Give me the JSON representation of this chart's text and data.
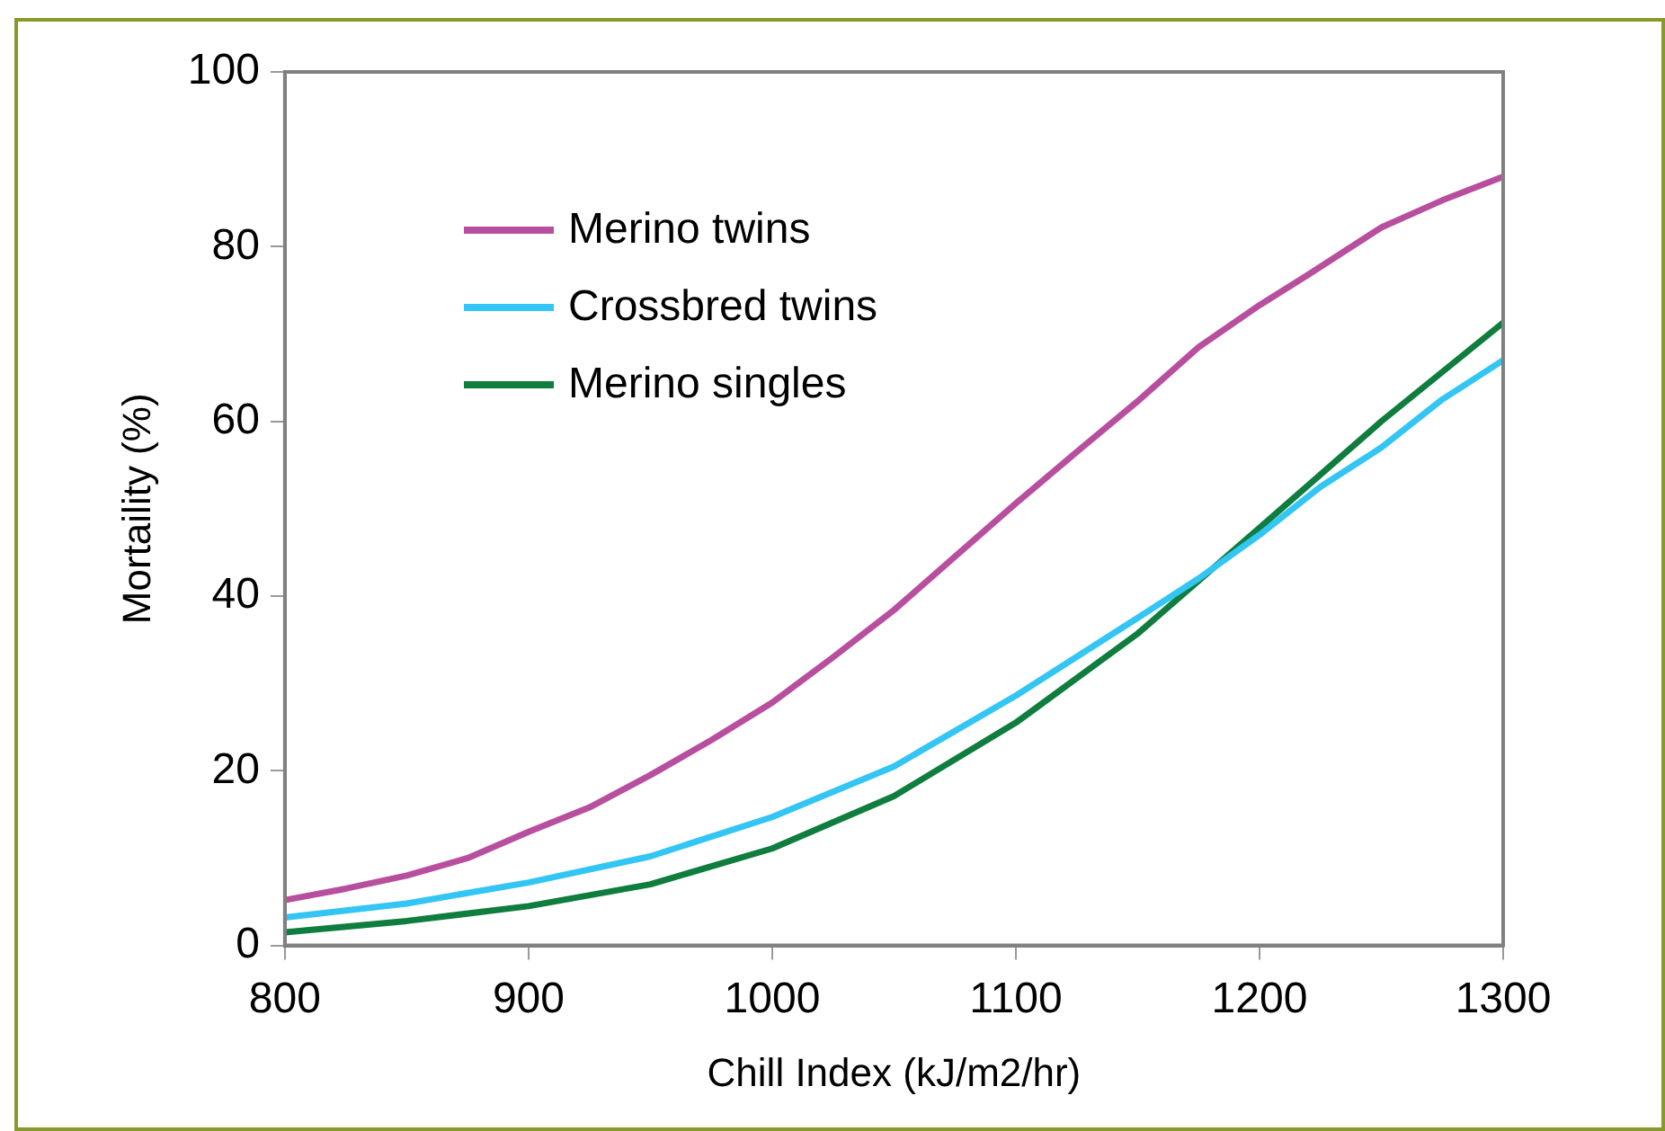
{
  "chart_data": {
    "type": "line",
    "xlabel": "Chill Index (kJ/m2/hr)",
    "ylabel": "Mortaility (%)",
    "xlim": [
      800,
      1300
    ],
    "xticks": [
      800,
      900,
      1000,
      1100,
      1200,
      1300
    ],
    "ylim": [
      0,
      100
    ],
    "yticks": [
      0,
      20,
      40,
      60,
      80,
      100
    ],
    "grid": false,
    "legend": "top left",
    "marker": "none",
    "line_style": "solid",
    "series": [
      {
        "name": "Merino twins",
        "color": "#b84f9e",
        "x": [
          800,
          825,
          850,
          875,
          900,
          925,
          950,
          975,
          1000,
          1025,
          1050,
          1075,
          1100,
          1125,
          1150,
          1175,
          1200,
          1220,
          1250,
          1275,
          1300
        ],
        "values": [
          5.2,
          6.5,
          8,
          10,
          13,
          15.8,
          19.5,
          23.5,
          27.8,
          33,
          38.4,
          44.5,
          50.6,
          56.5,
          62.3,
          68.5,
          73.3,
          76.8,
          82.2,
          85.3,
          88
        ]
      },
      {
        "name": "Crossbred twins",
        "color": "#33c5f3",
        "x": [
          800,
          850,
          900,
          950,
          1000,
          1050,
          1100,
          1150,
          1175,
          1200,
          1225,
          1250,
          1275,
          1300
        ],
        "values": [
          3.2,
          4.8,
          7.2,
          10.2,
          14.7,
          20.5,
          28.6,
          37.5,
          42,
          47,
          52.5,
          57,
          62.5,
          67
        ]
      },
      {
        "name": "Merino singles",
        "color": "#0e7d3e",
        "x": [
          800,
          850,
          900,
          950,
          1000,
          1050,
          1100,
          1150,
          1200,
          1250,
          1300
        ],
        "values": [
          1.5,
          2.8,
          4.5,
          7,
          11.1,
          17.1,
          25.5,
          35.7,
          47.8,
          60,
          71.3
        ]
      }
    ]
  }
}
